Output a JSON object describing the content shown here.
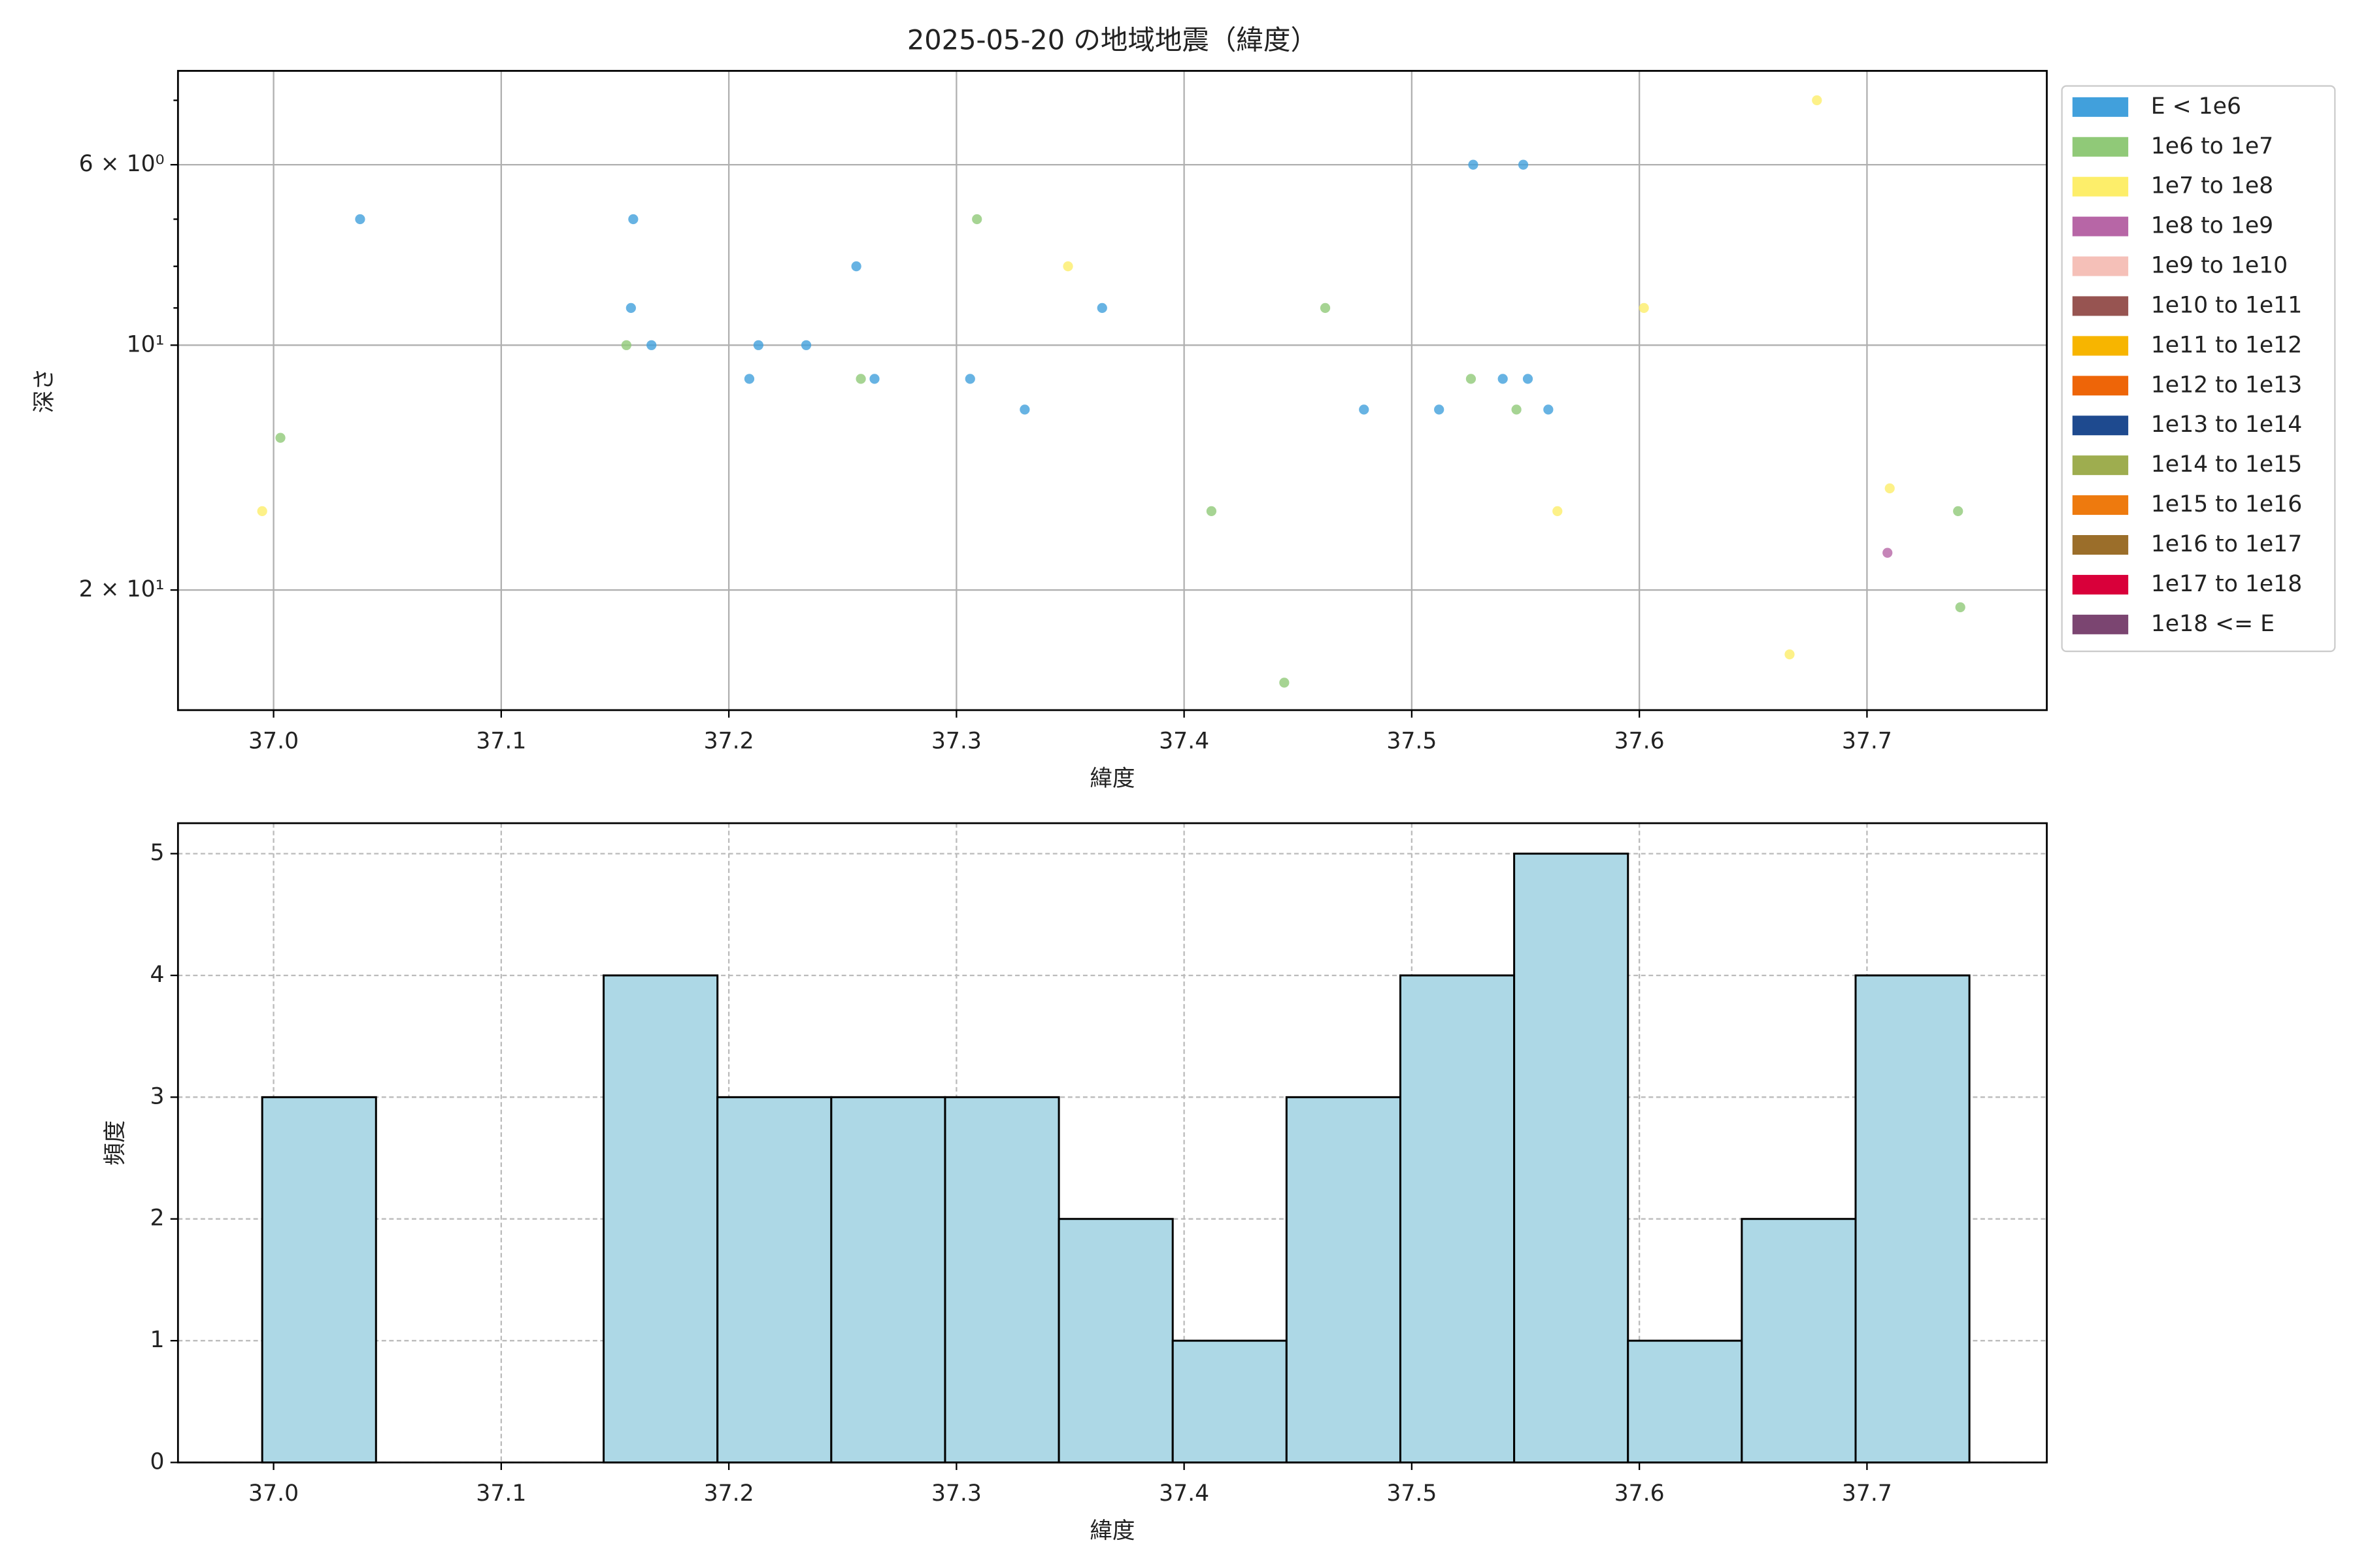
{
  "chart_data": [
    {
      "type": "scatter",
      "title": "2025-05-20 の地域地震（緯度）",
      "xlabel": "緯度",
      "ylabel": "深さ",
      "xlim": [
        36.958,
        37.779
      ],
      "xticks": [
        37.0,
        37.1,
        37.2,
        37.3,
        37.4,
        37.5,
        37.6,
        37.7
      ],
      "xtick_labels_fixed": true,
      "ylim": [
        28.1,
        4.6
      ],
      "yscale": "log",
      "yticks": [
        {
          "value": 6,
          "label": "6 × 10⁰"
        },
        {
          "value": 10,
          "label": "10¹"
        },
        {
          "value": 20,
          "label": "2 × 10¹"
        }
      ],
      "yminorticks": [
        5,
        7,
        8,
        9
      ],
      "grid": true,
      "legend_loc": "outside-upper-right",
      "series": [
        {
          "name": "E < 1e6",
          "color": "#41a0dc",
          "x": [
            37.038,
            37.158,
            37.157,
            37.166,
            37.209,
            37.213,
            37.234,
            37.256,
            37.264,
            37.306,
            37.33,
            37.364,
            37.479,
            37.512,
            37.527,
            37.549,
            37.54,
            37.551,
            37.56
          ],
          "y": [
            7,
            7,
            9,
            10,
            11,
            10,
            10,
            8,
            11,
            11,
            12,
            9,
            12,
            12,
            6,
            6,
            11,
            11,
            12
          ]
        },
        {
          "name": "1e6 to 1e7",
          "color": "#90c978",
          "x": [
            37.003,
            37.155,
            37.258,
            37.309,
            37.412,
            37.444,
            37.462,
            37.526,
            37.546,
            37.74,
            37.741
          ],
          "y": [
            13,
            10,
            11,
            7,
            16,
            26,
            9,
            11,
            12,
            16,
            21
          ]
        },
        {
          "name": "1e7 to 1e8",
          "color": "#fdee6a",
          "x": [
            36.995,
            37.349,
            37.564,
            37.602,
            37.666,
            37.678,
            37.71
          ],
          "y": [
            16,
            8,
            16,
            9,
            24,
            5,
            15
          ]
        },
        {
          "name": "1e8 to 1e9",
          "color": "#b766a6",
          "x": [
            37.709
          ],
          "y": [
            18
          ]
        },
        {
          "name": "1e9 to 1e10",
          "color": "#f5c0b8",
          "x": [],
          "y": []
        },
        {
          "name": "1e10 to 1e11",
          "color": "#975451",
          "x": [],
          "y": []
        },
        {
          "name": "1e11 to 1e12",
          "color": "#f7b500",
          "x": [],
          "y": []
        },
        {
          "name": "1e12 to 1e13",
          "color": "#ee6508",
          "x": [],
          "y": []
        },
        {
          "name": "1e13 to 1e14",
          "color": "#1e4a8f",
          "x": [],
          "y": []
        },
        {
          "name": "1e14 to 1e15",
          "color": "#9ead4f",
          "x": [],
          "y": []
        },
        {
          "name": "1e15 to 1e16",
          "color": "#ee7a0e",
          "x": [],
          "y": []
        },
        {
          "name": "1e16 to 1e17",
          "color": "#9b6e2a",
          "x": [],
          "y": []
        },
        {
          "name": "1e17 to 1e18",
          "color": "#d9003a",
          "x": [],
          "y": []
        },
        {
          "name": "1e18 <= E",
          "color": "#7b4571",
          "x": [],
          "y": []
        }
      ]
    },
    {
      "type": "histogram",
      "xlabel": "緯度",
      "ylabel": "頻度",
      "color": "#add8e6",
      "bins": [
        36.995,
        37.045,
        37.095,
        37.145,
        37.195,
        37.245,
        37.295,
        37.345,
        37.395,
        37.445,
        37.495,
        37.545,
        37.595,
        37.645,
        37.695,
        37.745
      ],
      "values": [
        3,
        0,
        0,
        4,
        3,
        3,
        3,
        2,
        1,
        3,
        4,
        5,
        1,
        2,
        4
      ],
      "xlim": [
        36.958,
        37.779
      ],
      "xticks": [
        37.0,
        37.1,
        37.2,
        37.3,
        37.4,
        37.5,
        37.6,
        37.7
      ],
      "ylim": [
        0,
        5.25
      ],
      "yticks": [
        0,
        1,
        2,
        3,
        4,
        5
      ],
      "grid": true
    }
  ]
}
